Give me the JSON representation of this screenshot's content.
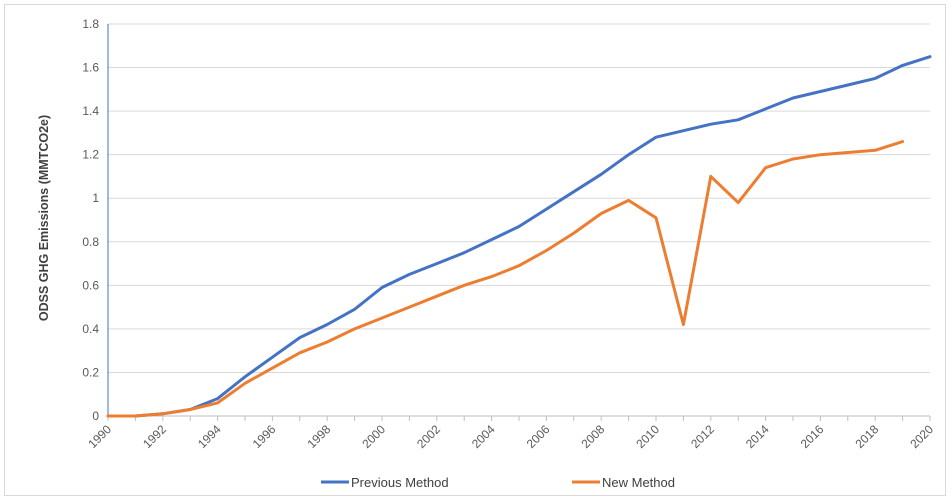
{
  "chart_data": {
    "type": "line",
    "title": "",
    "xlabel": "",
    "ylabel": "ODSS GHG Emissions  (MMTCO2e)",
    "xlim": [
      1990,
      2020
    ],
    "ylim": [
      0,
      1.8
    ],
    "y_ticks": [
      "0",
      "0.2",
      "0.4",
      "0.6",
      "0.8",
      "1",
      "1.2",
      "1.4",
      "1.6",
      "1.8"
    ],
    "x_ticks": [
      "1990",
      "1992",
      "1994",
      "1996",
      "1998",
      "2000",
      "2002",
      "2004",
      "2006",
      "2008",
      "2010",
      "2012",
      "2014",
      "2016",
      "2018",
      "2020"
    ],
    "grid": "horizontal",
    "legend_position": "bottom",
    "series": [
      {
        "name": "Previous Method",
        "color": "#4472c4",
        "x": [
          1990,
          1991,
          1992,
          1993,
          1994,
          1995,
          1996,
          1997,
          1998,
          1999,
          2000,
          2001,
          2002,
          2003,
          2004,
          2005,
          2006,
          2007,
          2008,
          2009,
          2010,
          2011,
          2012,
          2013,
          2014,
          2015,
          2016,
          2017,
          2018,
          2019,
          2020
        ],
        "y": [
          0.0,
          0.0,
          0.01,
          0.03,
          0.08,
          0.18,
          0.27,
          0.36,
          0.42,
          0.49,
          0.59,
          0.65,
          0.7,
          0.75,
          0.81,
          0.87,
          0.95,
          1.03,
          1.11,
          1.2,
          1.28,
          1.31,
          1.34,
          1.36,
          1.41,
          1.46,
          1.49,
          1.52,
          1.55,
          1.61,
          1.65
        ]
      },
      {
        "name": "New Method",
        "color": "#ed7d31",
        "x": [
          1990,
          1991,
          1992,
          1993,
          1994,
          1995,
          1996,
          1997,
          1998,
          1999,
          2000,
          2001,
          2002,
          2003,
          2004,
          2005,
          2006,
          2007,
          2008,
          2009,
          2010,
          2011,
          2012,
          2013,
          2014,
          2015,
          2016,
          2017,
          2018,
          2019
        ],
        "y": [
          0.0,
          0.0,
          0.01,
          0.03,
          0.06,
          0.15,
          0.22,
          0.29,
          0.34,
          0.4,
          0.45,
          0.5,
          0.55,
          0.6,
          0.64,
          0.69,
          0.76,
          0.84,
          0.93,
          0.99,
          0.91,
          0.42,
          1.1,
          0.98,
          1.14,
          1.18,
          1.2,
          1.21,
          1.22,
          1.26
        ]
      }
    ]
  }
}
